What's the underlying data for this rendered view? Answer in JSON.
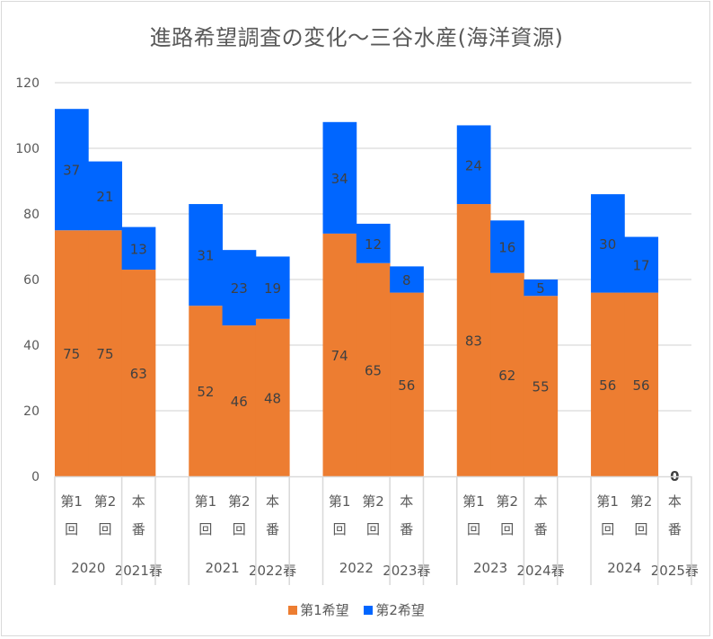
{
  "chart_data": {
    "type": "bar",
    "stacked": true,
    "title": "進路希望調査の変化～三谷水産(海洋資源)",
    "ylim": [
      0,
      120
    ],
    "yticks": [
      0,
      20,
      40,
      60,
      80,
      100,
      120
    ],
    "grid": true,
    "legend_position": "bottom",
    "groups": [
      {
        "year": "2020",
        "spring": "2021春",
        "items": [
          {
            "label1": "第1",
            "label2": "回",
            "s1": 75,
            "s2": 37
          },
          {
            "label1": "第2",
            "label2": "回",
            "s1": 75,
            "s2": 21
          },
          {
            "label1": "本",
            "label2": "番",
            "s1": 63,
            "s2": 13
          }
        ]
      },
      {
        "year": "2021",
        "spring": "2022春",
        "items": [
          {
            "label1": "第1",
            "label2": "回",
            "s1": 52,
            "s2": 31
          },
          {
            "label1": "第2",
            "label2": "回",
            "s1": 46,
            "s2": 23
          },
          {
            "label1": "本",
            "label2": "番",
            "s1": 48,
            "s2": 19
          }
        ]
      },
      {
        "year": "2022",
        "spring": "2023春",
        "items": [
          {
            "label1": "第1",
            "label2": "回",
            "s1": 74,
            "s2": 34
          },
          {
            "label1": "第2",
            "label2": "回",
            "s1": 65,
            "s2": 12
          },
          {
            "label1": "本",
            "label2": "番",
            "s1": 56,
            "s2": 8
          }
        ]
      },
      {
        "year": "2023",
        "spring": "2024春",
        "items": [
          {
            "label1": "第1",
            "label2": "回",
            "s1": 83,
            "s2": 24
          },
          {
            "label1": "第2",
            "label2": "回",
            "s1": 62,
            "s2": 16
          },
          {
            "label1": "本",
            "label2": "番",
            "s1": 55,
            "s2": 5
          }
        ]
      },
      {
        "year": "2024",
        "spring": "2025春",
        "items": [
          {
            "label1": "第1",
            "label2": "回",
            "s1": 56,
            "s2": 30
          },
          {
            "label1": "第2",
            "label2": "回",
            "s1": 56,
            "s2": 17
          },
          {
            "label1": "本",
            "label2": "番",
            "s1": 0,
            "s2": 0,
            "zero_label": "0"
          }
        ]
      }
    ],
    "series": [
      {
        "name": "第1希望",
        "color": "#ED7D31"
      },
      {
        "name": "第2希望",
        "color": "#0066FF"
      }
    ]
  }
}
